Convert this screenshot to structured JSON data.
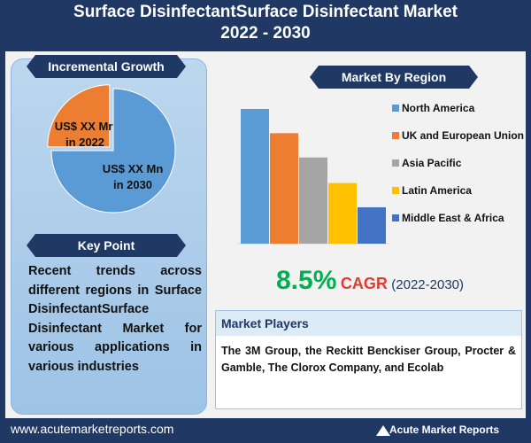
{
  "header": {
    "title_line1": "Surface DisinfectantSurface Disinfectant Market",
    "title_line2": "2022 - 2030"
  },
  "incremental_growth": {
    "heading": "Incremental Growth",
    "type": "pie",
    "slices": [
      {
        "label": "US$ XX Mn in 2022",
        "value": 25,
        "color": "#ed7d31"
      },
      {
        "label": "US$ XX Mn in 2030",
        "value": 75,
        "color": "#5b9bd5"
      }
    ]
  },
  "key_point": {
    "heading": "Key Point",
    "text": "Recent trends across different regions in Surface DisinfectantSurface Disinfectant Market for various applications in various industries"
  },
  "market_by_region": {
    "heading": "Market By Region",
    "type": "bar",
    "categories": [
      "North America",
      "UK and European Union",
      "Asia Pacific",
      "Latin America",
      "Middle East & Africa"
    ],
    "values": [
      100,
      82,
      64,
      45,
      27
    ],
    "colors": [
      "#5b9bd5",
      "#ed7d31",
      "#a5a5a5",
      "#ffc000",
      "#4472c4"
    ]
  },
  "cagr": {
    "value": "8.5%",
    "label": "CAGR",
    "period": "(2022-2030)"
  },
  "market_players": {
    "heading": "Market Players",
    "text": "The 3M Group, the Reckitt Benckiser Group, Procter & Gamble, The Clorox Company, and Ecolab"
  },
  "footer": {
    "url": "www.acutemarketreports.com",
    "brand": "Acute Market Reports"
  }
}
